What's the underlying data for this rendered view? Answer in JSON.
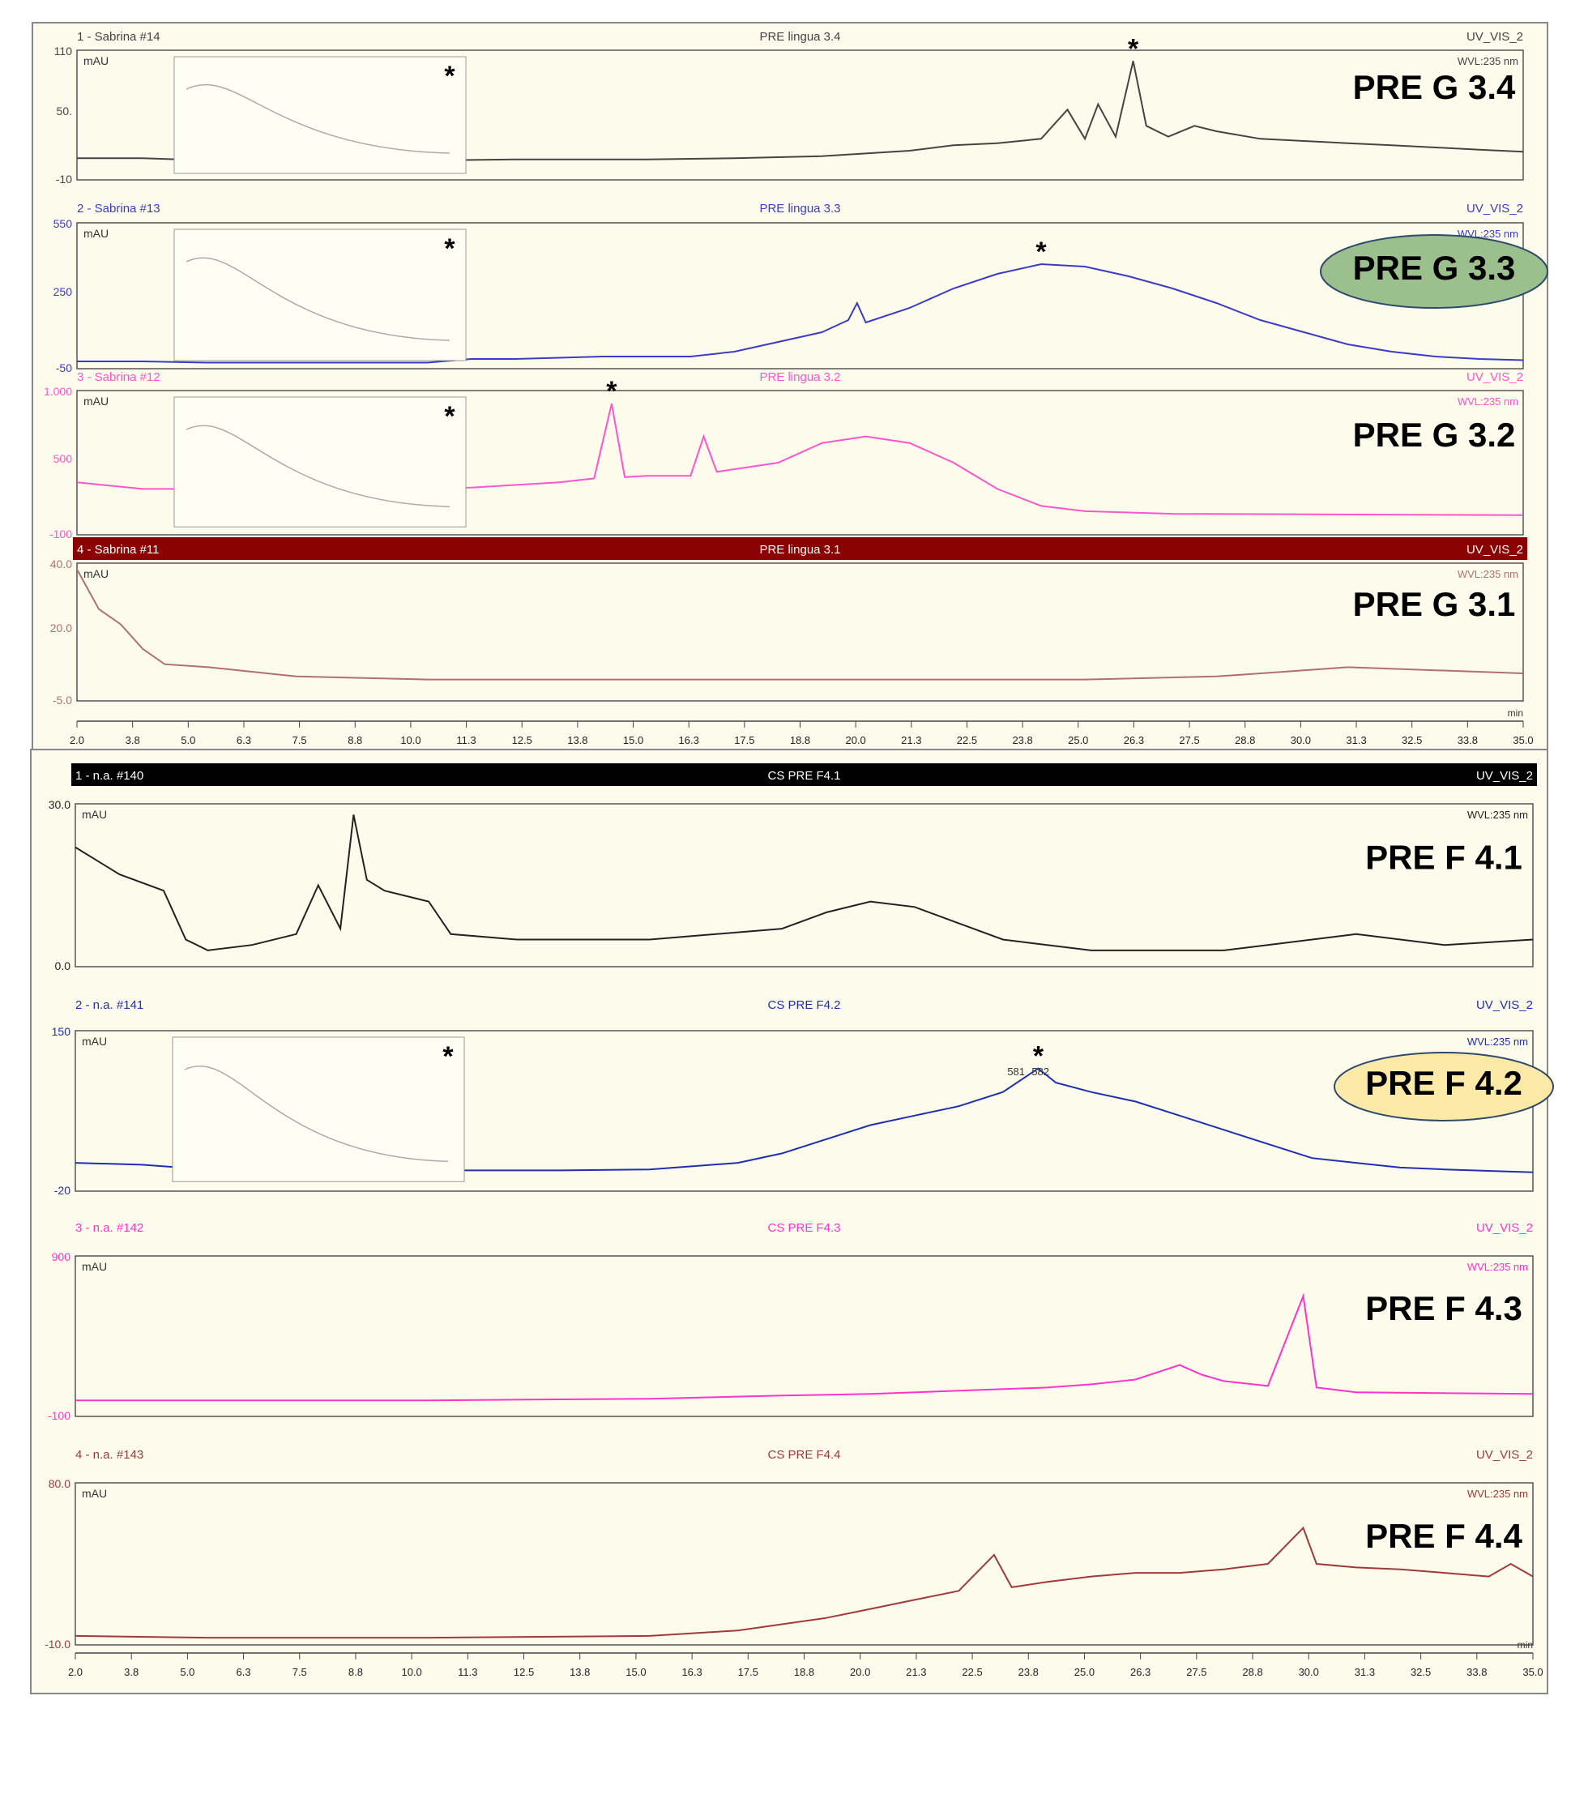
{
  "colors": {
    "panel_bg": "#fdfcec",
    "g34": "#444444",
    "g33": "#3b3bc8",
    "g32": "#ff55cc",
    "g31": "#b07070",
    "f41": "#222222",
    "f42": "#1f2fb0",
    "f43": "#ff33cc",
    "f44": "#a03a3a",
    "oval_green": "#9cbf8e",
    "oval_yellow": "#fbe9a8"
  },
  "group_top": {
    "x_axis": {
      "ticks": [
        "2.0",
        "3.8",
        "5.0",
        "6.3",
        "7.5",
        "8.8",
        "10.0",
        "11.3",
        "12.5",
        "13.8",
        "15.0",
        "16.3",
        "17.5",
        "18.8",
        "20.0",
        "21.3",
        "22.5",
        "23.8",
        "25.0",
        "26.3",
        "27.5",
        "28.8",
        "30.0",
        "31.3",
        "32.5",
        "33.8",
        "35.0"
      ],
      "unit": "min"
    },
    "panels": [
      {
        "key": "g34",
        "header_left": "1 - Sabrina #14",
        "header_center": "PRE lingua 3.4",
        "header_right": "UV_VIS_2",
        "wvl": "WVL:235 nm",
        "unit": "mAU",
        "y_top": "110",
        "y_mid": "50.",
        "y_bottom": "-10",
        "label": "PRE G 3.4",
        "asterisk": "*",
        "inset_asterisk": "*"
      },
      {
        "key": "g33",
        "header_left": "2 - Sabrina #13",
        "header_center": "PRE lingua 3.3",
        "header_right": "UV_VIS_2",
        "wvl": "WVL:235 nm",
        "unit": "mAU",
        "y_top": "550",
        "y_mid": "250",
        "y_bottom": "-50",
        "label": "PRE G 3.3",
        "asterisk": "*",
        "inset_asterisk": "*"
      },
      {
        "key": "g32",
        "header_left": "3 - Sabrina #12",
        "header_center": "PRE lingua 3.2",
        "header_right": "UV_VIS_2",
        "wvl": "WVL:235 nm",
        "unit": "mAU",
        "y_top": "1.000",
        "y_mid": "500",
        "y_bottom": "-100",
        "label": "PRE G 3.2",
        "asterisk": "*",
        "inset_asterisk": "*"
      },
      {
        "key": "g31",
        "header_left": "4 - Sabrina #11",
        "header_center": "PRE lingua 3.1",
        "header_right": "UV_VIS_2",
        "wvl": "WVL:235 nm",
        "unit": "mAU",
        "y_top": "40.0",
        "y_mid": "20.0",
        "y_bottom": "-5.0",
        "label": "PRE G 3.1"
      }
    ]
  },
  "group_bottom": {
    "x_axis": {
      "ticks": [
        "2.0",
        "3.8",
        "5.0",
        "6.3",
        "7.5",
        "8.8",
        "10.0",
        "11.3",
        "12.5",
        "13.8",
        "15.0",
        "16.3",
        "17.5",
        "18.8",
        "20.0",
        "21.3",
        "22.5",
        "23.8",
        "25.0",
        "26.3",
        "27.5",
        "28.8",
        "30.0",
        "31.3",
        "32.5",
        "33.8",
        "35.0"
      ],
      "unit": "min"
    },
    "panels": [
      {
        "key": "f41",
        "header_left": "1 - n.a. #140",
        "header_center": "CS PRE F4.1",
        "header_right": "UV_VIS_2",
        "wvl": "WVL:235 nm",
        "unit": "mAU",
        "y_top": "30.0",
        "y_bottom": "0.0",
        "label": "PRE F 4.1"
      },
      {
        "key": "f42",
        "header_left": "2 - n.a. #141",
        "header_center": "CS PRE F4.2",
        "header_right": "UV_VIS_2",
        "wvl": "WVL:235 nm",
        "unit": "mAU",
        "y_top": "150",
        "y_bottom": "-20",
        "label": "PRE F 4.2",
        "asterisk": "*",
        "inset_asterisk": "*",
        "peak_labels": [
          "581",
          "582"
        ]
      },
      {
        "key": "f43",
        "header_left": "3 - n.a. #142",
        "header_center": "CS PRE F4.3",
        "header_right": "UV_VIS_2",
        "wvl": "WVL:235 nm",
        "unit": "mAU",
        "y_top": "900",
        "y_bottom": "-100",
        "label": "PRE F 4.3"
      },
      {
        "key": "f44",
        "header_left": "4 - n.a. #143",
        "header_center": "CS PRE F4.4",
        "header_right": "UV_VIS_2",
        "wvl": "WVL:235 nm",
        "unit": "mAU",
        "y_top": "80.0",
        "y_bottom": "-10.0",
        "label": "PRE F 4.4"
      }
    ]
  },
  "chart_data": {
    "type": "line",
    "xlabel": "min",
    "ylabel": "mAU",
    "xlim": [
      2.0,
      35.0
    ],
    "series": [
      {
        "name": "PRE G 3.4",
        "ylim": [
          -10,
          110
        ],
        "points": [
          [
            2,
            10
          ],
          [
            3.5,
            10
          ],
          [
            5,
            8
          ],
          [
            10,
            8
          ],
          [
            12,
            9
          ],
          [
            15,
            9
          ],
          [
            17,
            10
          ],
          [
            19,
            12
          ],
          [
            21,
            17
          ],
          [
            22,
            22
          ],
          [
            23,
            24
          ],
          [
            24,
            28
          ],
          [
            24.6,
            55
          ],
          [
            25,
            28
          ],
          [
            25.3,
            60
          ],
          [
            25.7,
            30
          ],
          [
            26.1,
            100
          ],
          [
            26.4,
            40
          ],
          [
            26.9,
            30
          ],
          [
            27.5,
            40
          ],
          [
            28,
            35
          ],
          [
            29,
            28
          ],
          [
            30,
            26
          ],
          [
            31,
            24
          ],
          [
            32,
            22
          ],
          [
            33,
            20
          ],
          [
            34,
            18
          ],
          [
            35,
            16
          ]
        ]
      },
      {
        "name": "PRE G 3.3",
        "ylim": [
          -50,
          550
        ],
        "points": [
          [
            2,
            -20
          ],
          [
            3.5,
            -20
          ],
          [
            5,
            -25
          ],
          [
            10,
            -25
          ],
          [
            11,
            -10
          ],
          [
            12,
            -10
          ],
          [
            14,
            0
          ],
          [
            16,
            0
          ],
          [
            17,
            20
          ],
          [
            18,
            60
          ],
          [
            19,
            100
          ],
          [
            19.6,
            150
          ],
          [
            19.8,
            220
          ],
          [
            20,
            140
          ],
          [
            21,
            200
          ],
          [
            22,
            280
          ],
          [
            23,
            340
          ],
          [
            24,
            380
          ],
          [
            25,
            370
          ],
          [
            26,
            330
          ],
          [
            27,
            280
          ],
          [
            28,
            220
          ],
          [
            29,
            150
          ],
          [
            30,
            100
          ],
          [
            31,
            50
          ],
          [
            32,
            20
          ],
          [
            33,
            0
          ],
          [
            34,
            -10
          ],
          [
            35,
            -15
          ]
        ]
      },
      {
        "name": "PRE G 3.2",
        "ylim": [
          -100,
          1000
        ],
        "points": [
          [
            2,
            300
          ],
          [
            3.5,
            250
          ],
          [
            5,
            250
          ],
          [
            11,
            260
          ],
          [
            12,
            280
          ],
          [
            13,
            300
          ],
          [
            13.8,
            330
          ],
          [
            14.2,
            900
          ],
          [
            14.5,
            340
          ],
          [
            15,
            350
          ],
          [
            16,
            350
          ],
          [
            16.3,
            650
          ],
          [
            16.6,
            380
          ],
          [
            18,
            450
          ],
          [
            19,
            600
          ],
          [
            20,
            650
          ],
          [
            21,
            600
          ],
          [
            22,
            450
          ],
          [
            23,
            250
          ],
          [
            24,
            120
          ],
          [
            25,
            80
          ],
          [
            27,
            60
          ],
          [
            35,
            50
          ]
        ]
      },
      {
        "name": "PRE G 3.1",
        "ylim": [
          -5,
          40
        ],
        "points": [
          [
            2,
            38
          ],
          [
            2.5,
            25
          ],
          [
            3,
            20
          ],
          [
            3.5,
            12
          ],
          [
            4,
            7
          ],
          [
            5,
            6
          ],
          [
            7,
            3
          ],
          [
            10,
            2
          ],
          [
            15,
            2
          ],
          [
            20,
            2
          ],
          [
            25,
            2
          ],
          [
            28,
            3
          ],
          [
            30,
            5
          ],
          [
            31,
            6
          ],
          [
            33,
            5
          ],
          [
            35,
            4
          ]
        ]
      },
      {
        "name": "PRE F 4.1",
        "ylim": [
          0,
          30
        ],
        "points": [
          [
            2,
            22
          ],
          [
            3,
            17
          ],
          [
            4,
            14
          ],
          [
            4.5,
            5
          ],
          [
            5,
            3
          ],
          [
            6,
            4
          ],
          [
            7,
            6
          ],
          [
            7.5,
            15
          ],
          [
            8,
            7
          ],
          [
            8.3,
            28
          ],
          [
            8.6,
            16
          ],
          [
            9,
            14
          ],
          [
            10,
            12
          ],
          [
            10.5,
            6
          ],
          [
            12,
            5
          ],
          [
            15,
            5
          ],
          [
            18,
            7
          ],
          [
            19,
            10
          ],
          [
            20,
            12
          ],
          [
            21,
            11
          ],
          [
            22,
            8
          ],
          [
            23,
            5
          ],
          [
            25,
            3
          ],
          [
            28,
            3
          ],
          [
            30,
            5
          ],
          [
            31,
            6
          ],
          [
            33,
            4
          ],
          [
            35,
            5
          ]
        ]
      },
      {
        "name": "PRE F 4.2",
        "ylim": [
          -20,
          150
        ],
        "points": [
          [
            2,
            10
          ],
          [
            3.5,
            8
          ],
          [
            5,
            3
          ],
          [
            7,
            3
          ],
          [
            8,
            2
          ],
          [
            13,
            2
          ],
          [
            15,
            3
          ],
          [
            17,
            10
          ],
          [
            18,
            20
          ],
          [
            19,
            35
          ],
          [
            20,
            50
          ],
          [
            21,
            60
          ],
          [
            22,
            70
          ],
          [
            23,
            85
          ],
          [
            23.8,
            110
          ],
          [
            24.2,
            95
          ],
          [
            25,
            85
          ],
          [
            26,
            75
          ],
          [
            27,
            60
          ],
          [
            28,
            45
          ],
          [
            29,
            30
          ],
          [
            30,
            15
          ],
          [
            31,
            10
          ],
          [
            32,
            5
          ],
          [
            33,
            3
          ],
          [
            35,
            0
          ]
        ]
      },
      {
        "name": "PRE F 4.3",
        "ylim": [
          -100,
          900
        ],
        "points": [
          [
            2,
            0
          ],
          [
            10,
            0
          ],
          [
            15,
            10
          ],
          [
            18,
            30
          ],
          [
            20,
            40
          ],
          [
            22,
            60
          ],
          [
            24,
            80
          ],
          [
            25,
            100
          ],
          [
            26,
            130
          ],
          [
            27,
            220
          ],
          [
            27.5,
            160
          ],
          [
            28,
            120
          ],
          [
            29,
            90
          ],
          [
            29.8,
            650
          ],
          [
            30.1,
            80
          ],
          [
            31,
            50
          ],
          [
            35,
            40
          ]
        ]
      },
      {
        "name": "PRE F 4.4",
        "ylim": [
          -10,
          80
        ],
        "points": [
          [
            2,
            -5
          ],
          [
            5,
            -6
          ],
          [
            10,
            -6
          ],
          [
            15,
            -5
          ],
          [
            17,
            -2
          ],
          [
            19,
            5
          ],
          [
            20,
            10
          ],
          [
            21,
            15
          ],
          [
            22,
            20
          ],
          [
            22.8,
            40
          ],
          [
            23.2,
            22
          ],
          [
            24,
            25
          ],
          [
            25,
            28
          ],
          [
            26,
            30
          ],
          [
            27,
            30
          ],
          [
            28,
            32
          ],
          [
            29,
            35
          ],
          [
            29.8,
            55
          ],
          [
            30.1,
            35
          ],
          [
            31,
            33
          ],
          [
            32,
            32
          ],
          [
            33,
            30
          ],
          [
            34,
            28
          ],
          [
            34.5,
            35
          ],
          [
            35,
            28
          ]
        ]
      }
    ]
  }
}
